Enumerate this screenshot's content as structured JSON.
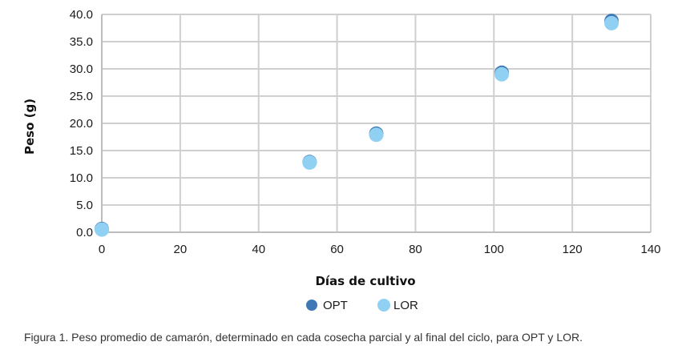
{
  "chart_data": {
    "type": "scatter",
    "xlabel": "Días de cultivo",
    "ylabel": "Peso (g)",
    "xlim": [
      0,
      140
    ],
    "ylim": [
      0,
      40
    ],
    "x_ticks": [
      "0",
      "20",
      "40",
      "60",
      "80",
      "100",
      "120",
      "140"
    ],
    "y_ticks": [
      "0.0",
      "5.0",
      "10.0",
      "15.0",
      "20.0",
      "25.0",
      "30.0",
      "35.0",
      "40.0"
    ],
    "grid": true,
    "legend_position": "bottom",
    "series": [
      {
        "name": "OPT",
        "color": "#3f78b4",
        "points": [
          {
            "x": 0,
            "y": 0.6
          },
          {
            "x": 53,
            "y": 12.9
          },
          {
            "x": 70,
            "y": 18.1
          },
          {
            "x": 102,
            "y": 29.3
          },
          {
            "x": 130,
            "y": 38.8
          }
        ]
      },
      {
        "name": "LOR",
        "color": "#8fd0f3",
        "points": [
          {
            "x": 0,
            "y": 0.5
          },
          {
            "x": 53,
            "y": 12.8
          },
          {
            "x": 70,
            "y": 17.9
          },
          {
            "x": 102,
            "y": 29.0
          },
          {
            "x": 130,
            "y": 38.4
          }
        ]
      }
    ]
  },
  "caption": "Figura 1. Peso promedio de camarón, determinado en cada cosecha parcial y al final del ciclo, para OPT y LOR."
}
